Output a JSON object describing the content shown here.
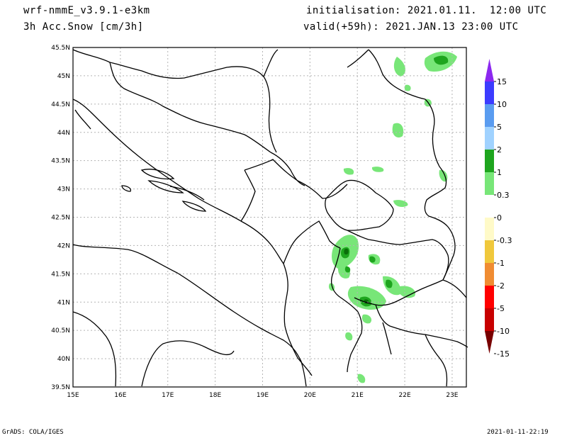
{
  "header": {
    "model": "wrf-nmmE_v3.9.1-e3km",
    "field": "3h Acc.Snow [cm/3h]",
    "init": "initialisation: 2021.01.11.  12:00 UTC",
    "valid": "valid(+59h): 2021.JAN.13 23:00 UTC"
  },
  "footer": {
    "left": "GrADS: COLA/IGES",
    "right": "2021-01-11-22:19"
  },
  "map": {
    "lon_labels": [
      "15E",
      "16E",
      "17E",
      "18E",
      "19E",
      "20E",
      "21E",
      "22E",
      "23E"
    ],
    "lat_labels": [
      "39.5N",
      "40N",
      "40.5N",
      "41N",
      "41.5N",
      "42N",
      "42.5N",
      "43N",
      "43.5N",
      "44N",
      "44.5N",
      "45N",
      "45.5N"
    ],
    "lon_range": [
      15,
      23.3
    ],
    "lat_range": [
      39.5,
      45.5
    ]
  },
  "colorbar": {
    "labels": [
      "15",
      "10",
      "5",
      "2",
      "1",
      "0.3",
      "0",
      "-0.3",
      "-1",
      "-2",
      "-5",
      "-10",
      "-15"
    ],
    "colors": [
      "#8c28f0",
      "#3c3cff",
      "#5a9cf0",
      "#a0d2ff",
      "#1ea51e",
      "#78e678",
      "#ffffff",
      "#fffac8",
      "#f0c83c",
      "#f08c32",
      "#ff0000",
      "#c80000",
      "#780000"
    ]
  },
  "colors": {
    "snow_light": "#78e678",
    "snow_mid": "#1ea51e",
    "snow_heavy": "#0a6e0a",
    "coast": "#000000",
    "grid": "#b4b4b4"
  }
}
